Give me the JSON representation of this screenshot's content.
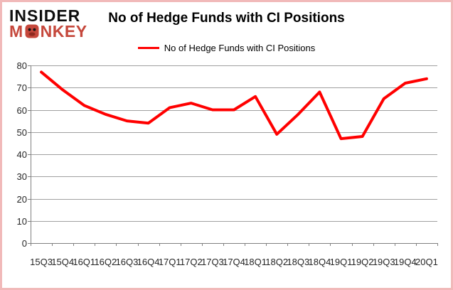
{
  "logo": {
    "line1": "INSIDER",
    "line2_left": "M",
    "line2_right": "NKEY",
    "black": "#0d0d0d",
    "red": "#c5473b"
  },
  "header": {
    "title": "No of Hedge Funds with CI Positions"
  },
  "legend": {
    "label": "No of Hedge Funds with CI Positions",
    "position": "top",
    "swatch_color": "#ff0000"
  },
  "colors": {
    "line": "#ff0000",
    "grid": "#a0a0a0",
    "axis": "#808080",
    "axis_text": "#262626",
    "border": "#f1b9b9",
    "background": "#ffffff"
  },
  "chart_data": {
    "type": "line",
    "title": "No of Hedge Funds with CI Positions",
    "categories": [
      "15Q3",
      "15Q4",
      "16Q1",
      "16Q2",
      "16Q3",
      "16Q4",
      "17Q1",
      "17Q2",
      "17Q3",
      "17Q4",
      "18Q1",
      "18Q2",
      "18Q3",
      "18Q4",
      "19Q1",
      "19Q2",
      "19Q3",
      "19Q4",
      "20Q1"
    ],
    "series": [
      {
        "name": "No of Hedge Funds with CI Positions",
        "color": "#ff0000",
        "values": [
          77,
          69,
          62,
          58,
          55,
          54,
          61,
          63,
          60,
          60,
          66,
          49,
          58,
          68,
          47,
          48,
          65,
          72,
          74
        ]
      }
    ],
    "xlabel": "",
    "ylabel": "",
    "ylim": [
      0,
      80
    ],
    "ytick_step": 10,
    "yticks": [
      0,
      10,
      20,
      30,
      40,
      50,
      60,
      70,
      80
    ],
    "grid": "horizontal",
    "legend_position": "top-center"
  }
}
